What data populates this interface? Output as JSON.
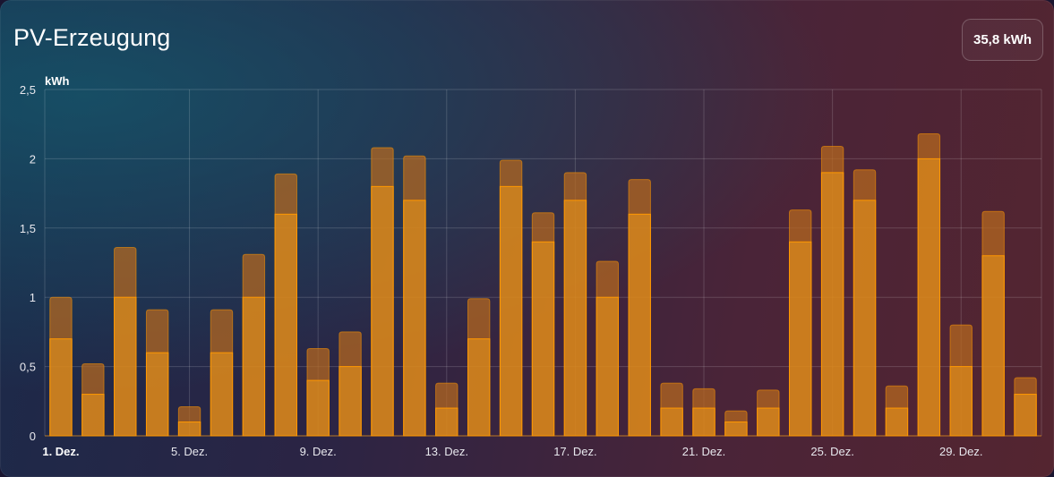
{
  "card": {
    "title": "PV-Erzeugung",
    "total": "35,8 kWh"
  },
  "colors": {
    "bar_fill": "#e8941a",
    "bar_stroke": "#ff9800",
    "cap_fill": "#b86a1e"
  },
  "chart_data": {
    "type": "bar",
    "title": "",
    "xlabel": "",
    "ylabel": "kWh",
    "ylim": [
      0,
      2.5
    ],
    "yticks": [
      "0",
      "0,5",
      "1",
      "1,5",
      "2",
      "2,5"
    ],
    "xtick_labels": [
      "1. Dez.",
      "5. Dez.",
      "9. Dez.",
      "13. Dez.",
      "17. Dez.",
      "21. Dez.",
      "25. Dez.",
      "29. Dez."
    ],
    "grid": true,
    "categories": [
      "1",
      "2",
      "3",
      "4",
      "5",
      "6",
      "7",
      "8",
      "9",
      "10",
      "11",
      "12",
      "13",
      "14",
      "15",
      "16",
      "17",
      "18",
      "19",
      "20",
      "21",
      "22",
      "23",
      "24",
      "25",
      "26",
      "27",
      "28",
      "29",
      "30",
      "31"
    ],
    "series": [
      {
        "values": [
          0.7,
          0.3,
          1.0,
          0.6,
          0.1,
          0.6,
          1.0,
          1.6,
          0.4,
          0.5,
          1.8,
          1.7,
          0.2,
          0.7,
          1.8,
          1.4,
          1.7,
          1.0,
          1.6,
          0.2,
          0.2,
          0.1,
          0.2,
          1.4,
          1.9,
          1.7,
          0.2,
          2.0,
          0.5,
          1.3,
          0.3
        ]
      },
      {
        "values": [
          1.0,
          0.52,
          1.36,
          0.91,
          0.21,
          0.91,
          1.31,
          1.89,
          0.63,
          0.75,
          2.08,
          2.02,
          0.38,
          0.99,
          1.99,
          1.61,
          1.9,
          1.26,
          1.85,
          0.38,
          0.34,
          0.18,
          0.33,
          1.63,
          2.09,
          1.92,
          0.36,
          2.18,
          0.8,
          1.62,
          0.42
        ]
      }
    ]
  }
}
